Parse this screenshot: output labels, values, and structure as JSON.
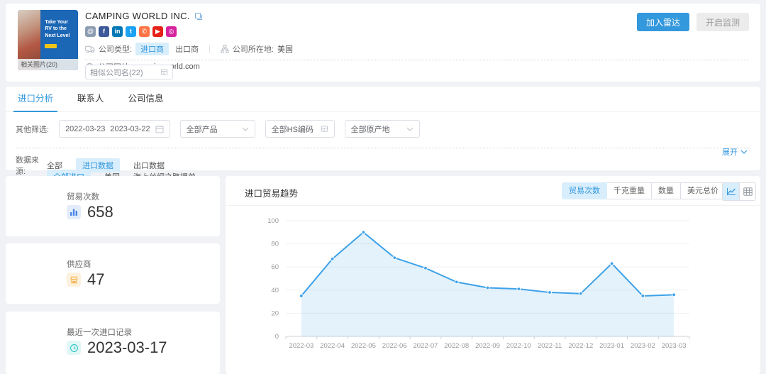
{
  "meta": {
    "accent": "#3398dc",
    "page_bg": "#f0f2f5"
  },
  "header": {
    "company_name": "CAMPING WORLD INC.",
    "image_caption": "Take Your RV to the Next Level",
    "image_overlay": "相关图片(20)",
    "social": [
      {
        "name": "website-icon",
        "glyph": "@",
        "color": "#8d9db1"
      },
      {
        "name": "facebook-icon",
        "glyph": "f",
        "color": "#3c5a99"
      },
      {
        "name": "linkedin-icon",
        "glyph": "in",
        "color": "#0077b5"
      },
      {
        "name": "twitter-icon",
        "glyph": "t",
        "color": "#1da1f2"
      },
      {
        "name": "phone-icon",
        "glyph": "✆",
        "color": "#ff7445"
      },
      {
        "name": "youtube-icon",
        "glyph": "▶",
        "color": "#e62117"
      },
      {
        "name": "instagram-icon",
        "glyph": "◎",
        "color": "#d6249f"
      }
    ],
    "company_type_label": "公司类型:",
    "importer_tag": "进口商",
    "exporter_tag": "出口商",
    "divider": "|",
    "location_label": "公司所在地:",
    "location_value": "美国",
    "website_label": "公司网址:",
    "website_value": "campingworld.com",
    "similar_select": "相似公司名(22)",
    "join_radar": "加入雷达",
    "monitor": "开启监测"
  },
  "tabs": [
    {
      "label": "进口分析",
      "active": true
    },
    {
      "label": "联系人",
      "active": false
    },
    {
      "label": "公司信息",
      "active": false
    }
  ],
  "filters": {
    "other_label": "其他筛选:",
    "date_start": "2022-03-23",
    "date_end": "2023-03-22",
    "product": "全部产品",
    "hs_code": "全部HS编码",
    "origin": "全部原产地",
    "source_label": "数据来源:",
    "source_options": [
      {
        "label": "全部",
        "active": false
      },
      {
        "label": "进口数据",
        "active": true
      },
      {
        "label": "出口数据",
        "active": false
      }
    ],
    "import_scope_options": [
      {
        "label": "全部进口",
        "active": true
      },
      {
        "label": "美国",
        "active": false
      },
      {
        "label": "海上丝绸之路提单",
        "active": false
      }
    ],
    "expand_label": "展开"
  },
  "stats": [
    {
      "label": "贸易次数",
      "value": "658",
      "icon": "bar-chart-icon",
      "color": "#4a86e8"
    },
    {
      "label": "供应商",
      "value": "47",
      "icon": "shop-icon",
      "color": "#f5a93b"
    },
    {
      "label": "最近一次进口记录",
      "value": "2023-03-17",
      "icon": "clock-icon",
      "color": "#2fc6c8"
    }
  ],
  "chart": {
    "title": "进口贸易趋势",
    "metric_buttons": [
      {
        "label": "贸易次数",
        "active": true
      },
      {
        "label": "千克重量",
        "active": false
      },
      {
        "label": "数量",
        "active": false
      },
      {
        "label": "美元总价",
        "active": false
      }
    ],
    "line_color": "#3da2e8",
    "area_color": "rgba(61,162,232,0.14)"
  },
  "chart_data": {
    "type": "area",
    "title": "进口贸易趋势",
    "x": [
      "2022-03",
      "2022-04",
      "2022-05",
      "2022-06",
      "2022-07",
      "2022-08",
      "2022-09",
      "2022-10",
      "2022-11",
      "2022-12",
      "2023-01",
      "2023-02",
      "2023-03"
    ],
    "series": [
      {
        "name": "贸易次数",
        "values": [
          35,
          67,
          90,
          68,
          59,
          47,
          42,
          41,
          38,
          37,
          63,
          35,
          36
        ]
      }
    ],
    "ylim": [
      0,
      100
    ],
    "yticks": [
      0,
      20,
      40,
      60,
      80,
      100
    ],
    "grid": true,
    "legend": "none"
  }
}
